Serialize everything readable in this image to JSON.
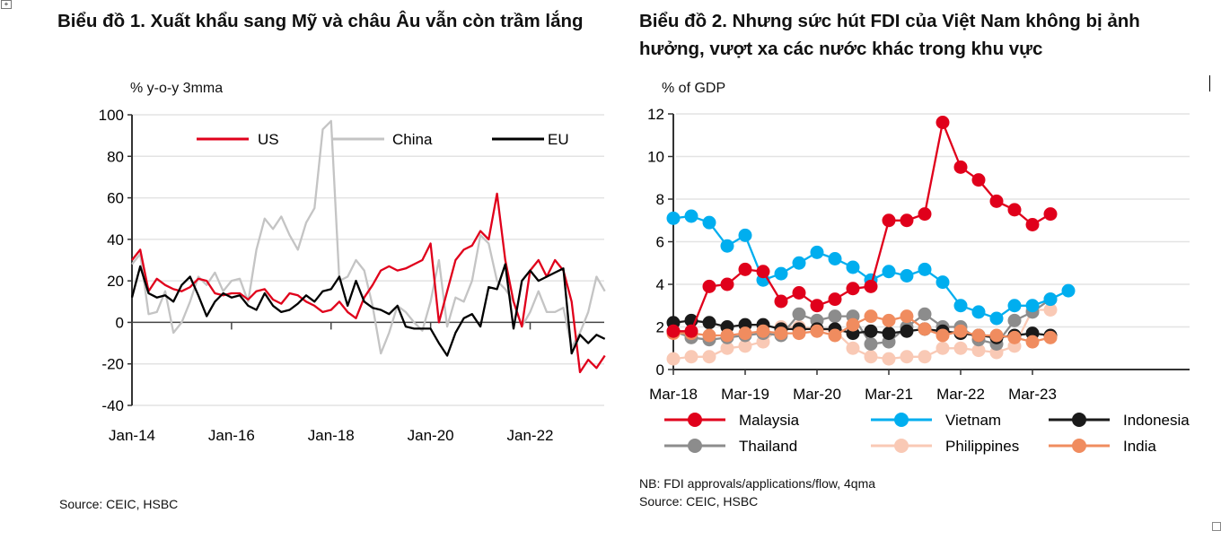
{
  "chart_data": [
    {
      "type": "line",
      "title": "Biểu đồ 1. Xuất khẩu sang Mỹ và châu Âu vẫn còn trầm lắng",
      "ylabel": "% y-o-y 3mma",
      "xlabel": "",
      "ylim": [
        -40,
        100
      ],
      "yticks": [
        "100",
        "80",
        "60",
        "40",
        "20",
        "0",
        "-20",
        "-40"
      ],
      "xticks": [
        "Jan-14",
        "Jan-16",
        "Jan-18",
        "Jan-20",
        "Jan-22"
      ],
      "x_start": "Jan-14",
      "x_step_months": 2,
      "grid": true,
      "legend": "top",
      "source": "Source: CEIC, HSBC",
      "series": [
        {
          "name": "US",
          "color": "#e0001b",
          "values": [
            30,
            35,
            15,
            21,
            18,
            16,
            15,
            17,
            21,
            20,
            14,
            13,
            14,
            14,
            11,
            15,
            16,
            11,
            9,
            14,
            13,
            10,
            8,
            5,
            6,
            10,
            5,
            2,
            12,
            18,
            25,
            27,
            25,
            26,
            28,
            30,
            38,
            0,
            15,
            30,
            35,
            37,
            44,
            40,
            62,
            30,
            10,
            -2,
            25,
            30,
            22,
            30,
            25,
            10,
            -24,
            -18,
            -22,
            -16
          ]
        },
        {
          "name": "China",
          "color": "#c4c4c4",
          "values": [
            28,
            33,
            4,
            5,
            15,
            -5,
            0,
            10,
            22,
            18,
            24,
            15,
            20,
            21,
            10,
            35,
            50,
            45,
            51,
            42,
            35,
            48,
            55,
            93,
            97,
            20,
            22,
            30,
            25,
            8,
            -15,
            -5,
            8,
            5,
            0,
            -4,
            10,
            30,
            -2,
            12,
            10,
            20,
            42,
            38,
            20,
            16,
            10,
            -2,
            5,
            15,
            5,
            5,
            7,
            -12,
            -5,
            5,
            22,
            15
          ]
        },
        {
          "name": "EU",
          "color": "#000000",
          "values": [
            12,
            27,
            14,
            12,
            13,
            10,
            18,
            22,
            13,
            3,
            10,
            14,
            12,
            13,
            8,
            6,
            14,
            8,
            5,
            6,
            9,
            13,
            10,
            15,
            16,
            22,
            8,
            20,
            10,
            7,
            6,
            4,
            8,
            -2,
            -3,
            -3,
            -3,
            -10,
            -16,
            -5,
            2,
            4,
            -2,
            17,
            16,
            28,
            -3,
            20,
            25,
            20,
            22,
            24,
            26,
            -15,
            -6,
            -10,
            -6,
            -8
          ]
        }
      ]
    },
    {
      "type": "line",
      "title": "Biểu đồ 2. Nhưng sức hút FDI của Việt Nam không bị ảnh hưởng, vượt xa các nước khác trong khu vực",
      "ylabel": "% of GDP",
      "xlabel": "",
      "ylim": [
        0,
        12
      ],
      "yticks": [
        "12",
        "10",
        "8",
        "6",
        "4",
        "2",
        "0"
      ],
      "xticks": [
        "Mar-18",
        "Mar-19",
        "Mar-20",
        "Mar-21",
        "Mar-22",
        "Mar-23"
      ],
      "x_start": "Mar-18",
      "x_step": "quarter",
      "grid": true,
      "legend": "bottom",
      "note": "NB: FDI approvals/applications/flow, 4qma",
      "source": "Source: CEIC, HSBC",
      "series": [
        {
          "name": "Malaysia",
          "color": "#e0001b",
          "values": [
            1.8,
            1.8,
            3.9,
            4.0,
            4.7,
            4.6,
            3.2,
            3.6,
            3.0,
            3.3,
            3.8,
            3.9,
            7.0,
            7.0,
            7.3,
            11.6,
            9.5,
            8.9,
            7.9,
            7.5,
            6.8,
            7.3
          ]
        },
        {
          "name": "Vietnam",
          "color": "#00aeef",
          "values": [
            7.1,
            7.2,
            6.9,
            5.8,
            6.3,
            4.2,
            4.5,
            5.0,
            5.5,
            5.2,
            4.8,
            4.2,
            4.6,
            4.4,
            4.7,
            4.1,
            3.0,
            2.7,
            2.4,
            3.0,
            3.0,
            3.3,
            3.7
          ]
        },
        {
          "name": "Indonesia",
          "color": "#1a1a1a",
          "values": [
            2.2,
            2.3,
            2.2,
            2.0,
            2.1,
            2.1,
            1.9,
            1.9,
            1.9,
            1.9,
            1.7,
            1.8,
            1.7,
            1.8,
            1.9,
            1.8,
            1.7,
            1.6,
            1.5,
            1.6,
            1.7,
            1.6
          ]
        },
        {
          "name": "Thailand",
          "color": "#8c8c8c",
          "values": [
            1.8,
            1.5,
            1.4,
            1.5,
            1.6,
            1.7,
            1.6,
            2.6,
            2.3,
            2.5,
            2.5,
            1.2,
            1.3,
            2.0,
            2.6,
            2.0,
            2.0,
            1.4,
            1.2,
            2.3,
            2.7,
            3.3
          ]
        },
        {
          "name": "Philippines",
          "color": "#f9c9b5",
          "values": [
            0.5,
            0.6,
            0.6,
            1.0,
            1.1,
            1.3,
            2.0,
            2.0,
            1.9,
            1.8,
            1.0,
            0.6,
            0.5,
            0.6,
            0.6,
            1.0,
            1.0,
            0.9,
            0.8,
            1.1,
            2.8,
            2.8
          ]
        },
        {
          "name": "India",
          "color": "#f08c5f",
          "values": [
            1.7,
            1.7,
            1.6,
            1.6,
            1.7,
            1.8,
            1.7,
            1.7,
            1.8,
            1.6,
            2.1,
            2.5,
            2.3,
            2.5,
            1.9,
            1.6,
            1.8,
            1.6,
            1.6,
            1.5,
            1.3,
            1.5
          ]
        }
      ]
    }
  ]
}
